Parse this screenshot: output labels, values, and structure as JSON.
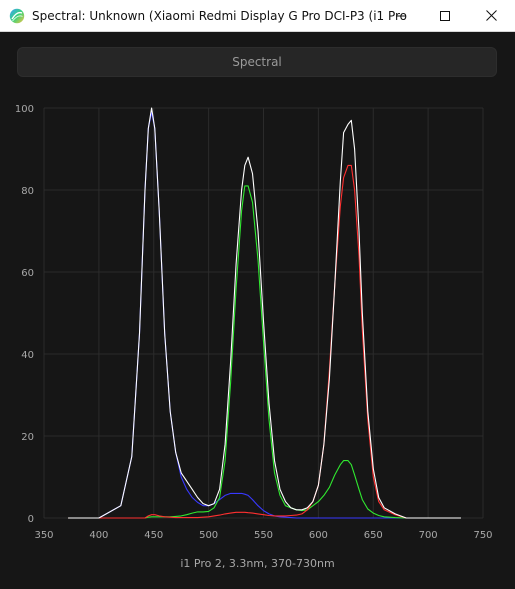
{
  "window": {
    "title": "Spectral: Unknown (Xiaomi Redmi Display G Pro DCI-P3 (i1 Pro...",
    "icons": {
      "app": "app-logo-icon",
      "minimize": "minimize-icon",
      "maximize": "maximize-icon",
      "close": "close-icon"
    }
  },
  "toolbar": {
    "spectral_label": "Spectral"
  },
  "caption": "i1 Pro 2, 3.3nm, 370-730nm",
  "colors": {
    "white": "#ffffff",
    "red": "#ff3030",
    "green": "#30e830",
    "blue": "#3838ff",
    "grid": "#2b2b2b",
    "background": "#161616"
  },
  "chart_data": {
    "type": "line",
    "xlim": [
      350,
      750
    ],
    "ylim": [
      0,
      100
    ],
    "x_ticks": [
      350,
      400,
      450,
      500,
      550,
      600,
      650,
      700,
      750
    ],
    "y_ticks": [
      0,
      20,
      40,
      60,
      80,
      100
    ],
    "grid": true,
    "x": [
      372,
      400,
      420,
      430,
      437,
      442,
      445,
      448,
      451,
      455,
      460,
      465,
      470,
      475,
      480,
      485,
      490,
      495,
      500,
      505,
      510,
      515,
      520,
      525,
      530,
      533,
      536,
      540,
      545,
      550,
      555,
      560,
      565,
      570,
      575,
      580,
      585,
      590,
      595,
      600,
      605,
      610,
      615,
      620,
      623,
      627,
      630,
      633,
      637,
      640,
      645,
      650,
      655,
      660,
      670,
      680,
      700,
      730
    ],
    "series": [
      {
        "name": "white",
        "color": "#ffffff",
        "values": [
          0,
          0,
          3,
          15,
          45,
          80,
          95,
          100,
          95,
          75,
          45,
          26,
          16,
          11,
          9,
          7,
          5,
          3.5,
          3,
          3.5,
          7,
          18,
          38,
          62,
          80,
          86,
          88,
          84,
          70,
          48,
          28,
          14,
          7,
          4,
          2.5,
          2,
          2,
          2.5,
          4,
          8,
          18,
          34,
          57,
          82,
          94,
          96,
          97,
          90,
          70,
          50,
          26,
          12,
          5,
          2.5,
          1,
          0,
          0,
          0
        ]
      },
      {
        "name": "red",
        "color": "#ff3030",
        "values": [
          0,
          0,
          0,
          0,
          0,
          0,
          0.5,
          0.8,
          0.8,
          0.5,
          0.3,
          0.2,
          0.1,
          0.1,
          0.1,
          0.1,
          0.1,
          0.2,
          0.3,
          0.5,
          0.7,
          1,
          1.2,
          1.4,
          1.4,
          1.4,
          1.3,
          1.2,
          1,
          0.8,
          0.6,
          0.5,
          0.5,
          0.5,
          0.6,
          0.7,
          1,
          2,
          4,
          8,
          18,
          36,
          57,
          76,
          83,
          86,
          86,
          80,
          64,
          46,
          24,
          10,
          4,
          2,
          0.8,
          0,
          0,
          0
        ]
      },
      {
        "name": "green",
        "color": "#30e830",
        "values": [
          0,
          0,
          0,
          0,
          0,
          0,
          0.2,
          0.3,
          0.3,
          0.3,
          0.3,
          0.3,
          0.4,
          0.5,
          0.8,
          1.2,
          1.5,
          1.5,
          1.6,
          2.5,
          5,
          14,
          33,
          56,
          75,
          81,
          81,
          77,
          63,
          43,
          24,
          11,
          5.5,
          3,
          2.5,
          2,
          1.8,
          2,
          3,
          4,
          5.5,
          7.5,
          10.5,
          13,
          14,
          14,
          13,
          10.5,
          7,
          4.5,
          2.2,
          1.2,
          0.6,
          0.3,
          0.1,
          0,
          0,
          0
        ]
      },
      {
        "name": "blue",
        "color": "#3838ff",
        "values": [
          0,
          0,
          3,
          15,
          45,
          80,
          95,
          99,
          95,
          75,
          45,
          26,
          16,
          10,
          7,
          5,
          3.8,
          3,
          3,
          3.5,
          4.5,
          5.5,
          6,
          6,
          6,
          5.8,
          5.5,
          4.5,
          3,
          1.8,
          1,
          0.5,
          0.3,
          0.2,
          0.1,
          0,
          0,
          0,
          0,
          0,
          0,
          0,
          0,
          0,
          0,
          0,
          0,
          0,
          0,
          0,
          0,
          0,
          0,
          0,
          0,
          0,
          0,
          0
        ]
      }
    ]
  }
}
